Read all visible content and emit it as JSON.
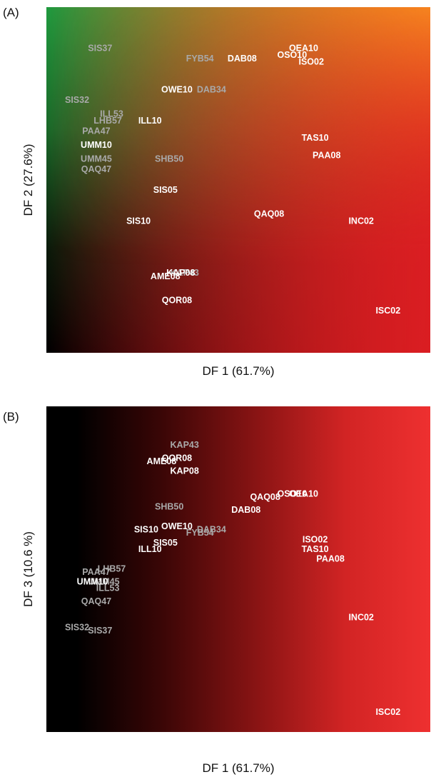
{
  "chart_data": [
    {
      "type": "scatter",
      "panel": "(A)",
      "xlabel": "DF 1 (61.7%)",
      "ylabel": "DF 2 (27.6%)",
      "xlim": [
        0,
        100
      ],
      "ylim": [
        0,
        100
      ],
      "grid": false,
      "points": [
        {
          "label": "SIS37",
          "x": 14,
          "y": 88,
          "color": "#a9a9a9"
        },
        {
          "label": "FYB54",
          "x": 40,
          "y": 85,
          "color": "#a9a9a9"
        },
        {
          "label": "DAB08",
          "x": 51,
          "y": 85,
          "color": "#ffffff"
        },
        {
          "label": "OEA10",
          "x": 67,
          "y": 88,
          "color": "#ffffff"
        },
        {
          "label": "OSO10",
          "x": 64,
          "y": 86,
          "color": "#ffffff"
        },
        {
          "label": "ISO02",
          "x": 69,
          "y": 84,
          "color": "#ffffff"
        },
        {
          "label": "OWE10",
          "x": 34,
          "y": 76,
          "color": "#ffffff"
        },
        {
          "label": "DAB34",
          "x": 43,
          "y": 76,
          "color": "#a9a9a9"
        },
        {
          "label": "SIS32",
          "x": 8,
          "y": 73,
          "color": "#a9a9a9"
        },
        {
          "label": "ILL53",
          "x": 17,
          "y": 69,
          "color": "#a9a9a9"
        },
        {
          "label": "LHB57",
          "x": 16,
          "y": 67,
          "color": "#a9a9a9"
        },
        {
          "label": "ILL10",
          "x": 27,
          "y": 67,
          "color": "#ffffff"
        },
        {
          "label": "PAA47",
          "x": 13,
          "y": 64,
          "color": "#a9a9a9"
        },
        {
          "label": "TAS10",
          "x": 70,
          "y": 62,
          "color": "#ffffff"
        },
        {
          "label": "PAA08",
          "x": 73,
          "y": 57,
          "color": "#ffffff"
        },
        {
          "label": "UMM10",
          "x": 13,
          "y": 60,
          "color": "#ffffff"
        },
        {
          "label": "UMM45",
          "x": 13,
          "y": 56,
          "color": "#a9a9a9"
        },
        {
          "label": "SHB50",
          "x": 32,
          "y": 56,
          "color": "#a9a9a9"
        },
        {
          "label": "QAQ47",
          "x": 13,
          "y": 53,
          "color": "#a9a9a9"
        },
        {
          "label": "SIS05",
          "x": 31,
          "y": 47,
          "color": "#ffffff"
        },
        {
          "label": "QAQ08",
          "x": 58,
          "y": 40,
          "color": "#ffffff"
        },
        {
          "label": "INC02",
          "x": 82,
          "y": 38,
          "color": "#ffffff"
        },
        {
          "label": "SIS10",
          "x": 24,
          "y": 38,
          "color": "#ffffff"
        },
        {
          "label": "KAP43",
          "x": 36,
          "y": 23,
          "color": "#a9a9a9"
        },
        {
          "label": "KAP08",
          "x": 35,
          "y": 23,
          "color": "#ffffff"
        },
        {
          "label": "AME08",
          "x": 31,
          "y": 22,
          "color": "#ffffff"
        },
        {
          "label": "QOR08",
          "x": 34,
          "y": 15,
          "color": "#ffffff"
        },
        {
          "label": "ISC02",
          "x": 89,
          "y": 12,
          "color": "#ffffff"
        }
      ]
    },
    {
      "type": "scatter",
      "panel": "(B)",
      "xlabel": "DF 1 (61.7%)",
      "ylabel": "DF 3 (10.6 %)",
      "xlim": [
        0,
        100
      ],
      "ylim": [
        0,
        100
      ],
      "grid": false,
      "points": [
        {
          "label": "KAP43",
          "x": 36,
          "y": 88,
          "color": "#a9a9a9"
        },
        {
          "label": "QOR08",
          "x": 34,
          "y": 84,
          "color": "#ffffff"
        },
        {
          "label": "AME08",
          "x": 30,
          "y": 83,
          "color": "#ffffff"
        },
        {
          "label": "KAP08",
          "x": 36,
          "y": 80,
          "color": "#ffffff"
        },
        {
          "label": "OSO10",
          "x": 64,
          "y": 73,
          "color": "#ffffff"
        },
        {
          "label": "OEA10",
          "x": 67,
          "y": 73,
          "color": "#ffffff"
        },
        {
          "label": "QAQ08",
          "x": 57,
          "y": 72,
          "color": "#ffffff"
        },
        {
          "label": "SHB50",
          "x": 32,
          "y": 69,
          "color": "#a9a9a9"
        },
        {
          "label": "DAB08",
          "x": 52,
          "y": 68,
          "color": "#ffffff"
        },
        {
          "label": "OWE10",
          "x": 34,
          "y": 63,
          "color": "#ffffff"
        },
        {
          "label": "SIS10",
          "x": 26,
          "y": 62,
          "color": "#ffffff"
        },
        {
          "label": "DAB34",
          "x": 43,
          "y": 62,
          "color": "#a9a9a9"
        },
        {
          "label": "FYB54",
          "x": 40,
          "y": 61,
          "color": "#a9a9a9"
        },
        {
          "label": "ISO02",
          "x": 70,
          "y": 59,
          "color": "#ffffff"
        },
        {
          "label": "SIS05",
          "x": 31,
          "y": 58,
          "color": "#ffffff"
        },
        {
          "label": "ILL10",
          "x": 27,
          "y": 56,
          "color": "#ffffff"
        },
        {
          "label": "TAS10",
          "x": 70,
          "y": 56,
          "color": "#ffffff"
        },
        {
          "label": "PAA08",
          "x": 74,
          "y": 53,
          "color": "#ffffff"
        },
        {
          "label": "LHB57",
          "x": 17,
          "y": 50,
          "color": "#a9a9a9"
        },
        {
          "label": "PAA47",
          "x": 13,
          "y": 49,
          "color": "#a9a9a9"
        },
        {
          "label": "UMM45",
          "x": 15,
          "y": 46,
          "color": "#a9a9a9"
        },
        {
          "label": "UMM10",
          "x": 12,
          "y": 46,
          "color": "#ffffff"
        },
        {
          "label": "ILL53",
          "x": 16,
          "y": 44,
          "color": "#a9a9a9"
        },
        {
          "label": "QAQ47",
          "x": 13,
          "y": 40,
          "color": "#a9a9a9"
        },
        {
          "label": "INC02",
          "x": 82,
          "y": 35,
          "color": "#ffffff"
        },
        {
          "label": "SIS32",
          "x": 8,
          "y": 32,
          "color": "#a9a9a9"
        },
        {
          "label": "SIS37",
          "x": 14,
          "y": 31,
          "color": "#a9a9a9"
        },
        {
          "label": "ISC02",
          "x": 89,
          "y": 6,
          "color": "#ffffff"
        }
      ]
    }
  ]
}
